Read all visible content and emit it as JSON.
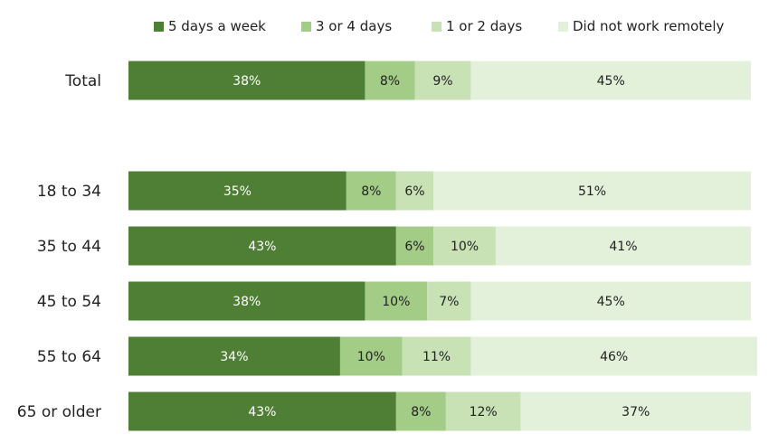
{
  "chart_data": {
    "type": "bar",
    "orientation": "horizontal",
    "stacked": true,
    "categories": [
      "Total",
      "18 to 34",
      "35 to 44",
      "45 to 54",
      "55 to 64",
      "65 or older"
    ],
    "series": [
      {
        "name": "5 days a week",
        "color": "#4e7f34",
        "values": [
          38,
          35,
          43,
          38,
          34,
          43
        ],
        "labels": [
          "38%",
          "35%",
          "43%",
          "38%",
          "34%",
          "43%"
        ]
      },
      {
        "name": "3 or 4 days",
        "color": "#a3cc87",
        "values": [
          8,
          8,
          6,
          10,
          10,
          8
        ],
        "labels": [
          "8%",
          "8%",
          "6%",
          "10%",
          "10%",
          "8%"
        ]
      },
      {
        "name": "1 or 2 days",
        "color": "#c8e2b5",
        "values": [
          9,
          6,
          10,
          7,
          11,
          12
        ],
        "labels": [
          "9%",
          "6%",
          "10%",
          "7%",
          "11%",
          "12%"
        ]
      },
      {
        "name": "Did not work remotely",
        "color": "#e3f0da",
        "values": [
          45,
          51,
          41,
          45,
          46,
          37
        ],
        "labels": [
          "45%",
          "51%",
          "41%",
          "45%",
          "46%",
          "37%"
        ]
      }
    ],
    "xlim": [
      0,
      100
    ],
    "legend_position": "top",
    "grid": false
  }
}
